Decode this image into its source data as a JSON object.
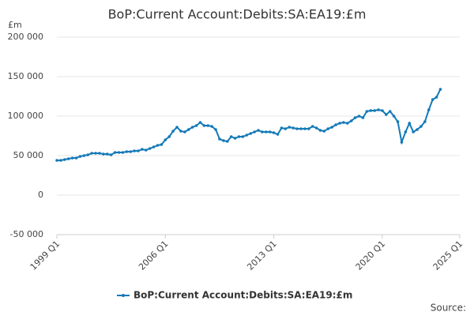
{
  "chart_data": {
    "type": "line",
    "title": "BoP:Current Account:Debits:SA:EA19:£m",
    "y_label": "£m",
    "source": "Source:",
    "x": [
      "1999 Q1",
      "1999 Q2",
      "1999 Q3",
      "1999 Q4",
      "2000 Q1",
      "2000 Q2",
      "2000 Q3",
      "2000 Q4",
      "2001 Q1",
      "2001 Q2",
      "2001 Q3",
      "2001 Q4",
      "2002 Q1",
      "2002 Q2",
      "2002 Q3",
      "2002 Q4",
      "2003 Q1",
      "2003 Q2",
      "2003 Q3",
      "2003 Q4",
      "2004 Q1",
      "2004 Q2",
      "2004 Q3",
      "2004 Q4",
      "2005 Q1",
      "2005 Q2",
      "2005 Q3",
      "2005 Q4",
      "2006 Q1",
      "2006 Q2",
      "2006 Q3",
      "2006 Q4",
      "2007 Q1",
      "2007 Q2",
      "2007 Q3",
      "2007 Q4",
      "2008 Q1",
      "2008 Q2",
      "2008 Q3",
      "2008 Q4",
      "2009 Q1",
      "2009 Q2",
      "2009 Q3",
      "2009 Q4",
      "2010 Q1",
      "2010 Q2",
      "2010 Q3",
      "2010 Q4",
      "2011 Q1",
      "2011 Q2",
      "2011 Q3",
      "2011 Q4",
      "2012 Q1",
      "2012 Q2",
      "2012 Q3",
      "2012 Q4",
      "2013 Q1",
      "2013 Q2",
      "2013 Q3",
      "2013 Q4",
      "2014 Q1",
      "2014 Q2",
      "2014 Q3",
      "2014 Q4",
      "2015 Q1",
      "2015 Q2",
      "2015 Q3",
      "2015 Q4",
      "2016 Q1",
      "2016 Q2",
      "2016 Q3",
      "2016 Q4",
      "2017 Q1",
      "2017 Q2",
      "2017 Q3",
      "2017 Q4",
      "2018 Q1",
      "2018 Q2",
      "2018 Q3",
      "2018 Q4",
      "2019 Q1",
      "2019 Q2",
      "2019 Q3",
      "2019 Q4",
      "2020 Q1",
      "2020 Q2",
      "2020 Q3",
      "2020 Q4",
      "2021 Q1",
      "2021 Q2",
      "2021 Q3",
      "2021 Q4",
      "2022 Q1",
      "2022 Q2",
      "2022 Q3",
      "2022 Q4",
      "2023 Q1",
      "2023 Q2",
      "2023 Q3",
      "2023 Q4"
    ],
    "series": [
      {
        "name": "BoP:Current Account:Debits:SA:EA19:£m",
        "color": "#1479b8",
        "values": [
          44000,
          44000,
          45000,
          46000,
          47000,
          47000,
          49000,
          50000,
          51000,
          53000,
          53000,
          53000,
          52000,
          52000,
          51000,
          54000,
          54000,
          54000,
          55000,
          55000,
          56000,
          56000,
          58000,
          57000,
          59000,
          61000,
          63000,
          64000,
          70000,
          74000,
          81000,
          86000,
          81000,
          80000,
          83000,
          86000,
          88000,
          92000,
          88000,
          88000,
          87000,
          83000,
          71000,
          69000,
          68000,
          74000,
          72000,
          74000,
          74000,
          76000,
          78000,
          80000,
          82000,
          80000,
          80000,
          80000,
          79000,
          77000,
          85000,
          84000,
          86000,
          85000,
          84000,
          84000,
          84000,
          84000,
          87000,
          85000,
          82000,
          81000,
          84000,
          86000,
          89000,
          91000,
          92000,
          91000,
          94000,
          98000,
          100000,
          98000,
          106000,
          107000,
          107000,
          108000,
          107000,
          102000,
          106000,
          100000,
          93000,
          67000,
          80000,
          91000,
          80000,
          83000,
          87000,
          93000,
          108000,
          121000,
          124000,
          134000
        ]
      }
    ],
    "xlim": [
      "1999 Q1",
      "2025 Q1"
    ],
    "xticks": [
      "1999 Q1",
      "2006 Q1",
      "2013 Q1",
      "2020 Q1",
      "2025 Q1"
    ],
    "ylim": [
      -50000,
      200000
    ],
    "yticks": [
      {
        "value": -50000,
        "label": "-50 000"
      },
      0,
      {
        "value": 50000,
        "label": "50 000"
      },
      {
        "value": 100000,
        "label": "100 000"
      },
      {
        "value": 150000,
        "label": "150 000"
      },
      {
        "value": 200000,
        "label": "200 000"
      }
    ],
    "grid": true
  }
}
